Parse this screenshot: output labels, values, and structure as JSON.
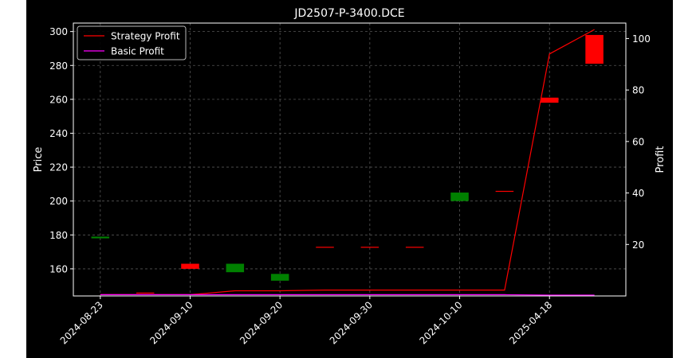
{
  "chart_data": {
    "type": "candlestick+line",
    "title": "JD2507-P-3400.DCE",
    "ylabel_left": "Price",
    "ylabel_right": "Profit",
    "grid": true,
    "legend_position": "top-left",
    "x_tick_labels": [
      "2024-08-23",
      "2024-09-10",
      "2024-09-20",
      "2024-09-30",
      "2024-10-10",
      "2025-04-18"
    ],
    "x_tick_positions": [
      0,
      2,
      4,
      6,
      8,
      10
    ],
    "y_left": {
      "min": 144,
      "max": 305,
      "ticks": [
        160,
        180,
        200,
        220,
        240,
        260,
        280,
        300
      ]
    },
    "y_right": {
      "min": 0,
      "max": 106,
      "ticks": [
        20,
        40,
        60,
        80,
        100
      ]
    },
    "candles": [
      {
        "open": 178,
        "close": 179,
        "color": "green"
      },
      {
        "open": 146,
        "close": 146,
        "color": "red"
      },
      {
        "open": 163,
        "close": 160,
        "color": "red"
      },
      {
        "open": 158,
        "close": 163,
        "color": "green"
      },
      {
        "open": 153,
        "close": 157,
        "color": "green"
      },
      {
        "open": 173,
        "close": 173,
        "color": "red"
      },
      {
        "open": 173,
        "close": 173,
        "color": "red"
      },
      {
        "open": 173,
        "close": 173,
        "color": "red"
      },
      {
        "open": 200,
        "close": 205,
        "color": "green"
      },
      {
        "open": 206,
        "close": 206,
        "color": "red"
      },
      {
        "open": 261,
        "close": 258,
        "color": "red"
      },
      {
        "open": 298,
        "close": 281,
        "color": "red"
      }
    ],
    "series": [
      {
        "name": "Strategy Profit",
        "color": "#ff0000",
        "values": [
          0.5,
          0.5,
          0.5,
          2,
          2,
          2.3,
          2.3,
          2.3,
          2.3,
          2.3,
          94,
          103.5
        ]
      },
      {
        "name": "Basic Profit",
        "color": "#ff00ff",
        "values": [
          0.5,
          0.5,
          0.5,
          0.5,
          0.5,
          0.5,
          0.5,
          0.5,
          0.5,
          0.5,
          0.3,
          0.3
        ]
      }
    ]
  }
}
